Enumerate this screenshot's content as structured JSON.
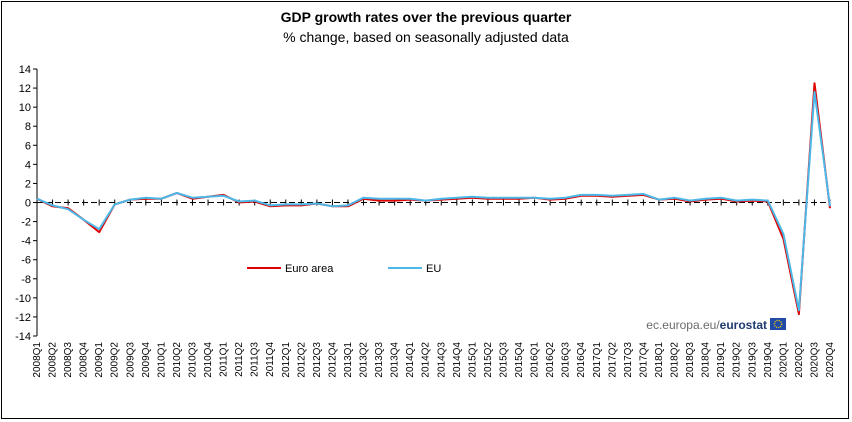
{
  "chart_data": {
    "type": "line",
    "title": "GDP growth rates over the previous quarter",
    "subtitle": "% change, based on seasonally adjusted data",
    "xlabel": "",
    "ylabel": "",
    "ylim": [
      -14,
      14
    ],
    "yticks": [
      14,
      12,
      10,
      8,
      6,
      4,
      2,
      0,
      -2,
      -4,
      -6,
      -8,
      -10,
      -12,
      -14
    ],
    "categories": [
      "2008Q1",
      "2008Q2",
      "2008Q3",
      "2008Q4",
      "2009Q1",
      "2009Q2",
      "2009Q3",
      "2009Q4",
      "2010Q1",
      "2010Q2",
      "2010Q3",
      "2010Q4",
      "2011Q1",
      "2011Q2",
      "2011Q3",
      "2011Q4",
      "2012Q1",
      "2012Q2",
      "2012Q3",
      "2012Q4",
      "2013Q1",
      "2013Q2",
      "2013Q3",
      "2013Q4",
      "2014Q1",
      "2014Q2",
      "2014Q3",
      "2014Q4",
      "2015Q1",
      "2015Q2",
      "2015Q3",
      "2015Q4",
      "2016Q1",
      "2016Q2",
      "2016Q3",
      "2016Q4",
      "2017Q1",
      "2017Q2",
      "2017Q3",
      "2017Q4",
      "2018Q1",
      "2018Q2",
      "2018Q3",
      "2018Q4",
      "2019Q1",
      "2019Q2",
      "2019Q3",
      "2019Q4",
      "2020Q1",
      "2020Q2",
      "2020Q3",
      "2020Q4"
    ],
    "series": [
      {
        "name": "Euro area",
        "color": "#e00000",
        "values": [
          0.4,
          -0.4,
          -0.6,
          -1.8,
          -3.1,
          -0.2,
          0.3,
          0.4,
          0.4,
          1.0,
          0.4,
          0.6,
          0.8,
          0.0,
          0.1,
          -0.4,
          -0.3,
          -0.3,
          -0.1,
          -0.4,
          -0.4,
          0.4,
          0.2,
          0.2,
          0.3,
          0.2,
          0.3,
          0.4,
          0.5,
          0.4,
          0.4,
          0.4,
          0.5,
          0.3,
          0.4,
          0.7,
          0.7,
          0.6,
          0.7,
          0.8,
          0.3,
          0.4,
          0.1,
          0.3,
          0.4,
          0.1,
          0.2,
          0.1,
          -3.8,
          -11.7,
          12.5,
          -0.6
        ]
      },
      {
        "name": "EU",
        "color": "#4bb8e8",
        "values": [
          0.4,
          -0.3,
          -0.7,
          -1.8,
          -2.8,
          -0.2,
          0.3,
          0.5,
          0.4,
          1.0,
          0.5,
          0.6,
          0.7,
          0.1,
          0.2,
          -0.3,
          -0.2,
          -0.2,
          -0.1,
          -0.4,
          -0.3,
          0.5,
          0.4,
          0.4,
          0.4,
          0.2,
          0.4,
          0.5,
          0.6,
          0.5,
          0.5,
          0.5,
          0.5,
          0.4,
          0.5,
          0.8,
          0.8,
          0.7,
          0.8,
          0.9,
          0.3,
          0.5,
          0.2,
          0.4,
          0.5,
          0.2,
          0.3,
          0.2,
          -3.3,
          -11.3,
          11.6,
          -0.4
        ]
      }
    ],
    "legend": {
      "placement": "inside-lower-left"
    },
    "grid": false
  },
  "source": {
    "site": "ec.europa.eu/",
    "brand": "eurostat",
    "eu_flag_color": "#1f4aa8",
    "eu_star_color": "#ffd500"
  }
}
